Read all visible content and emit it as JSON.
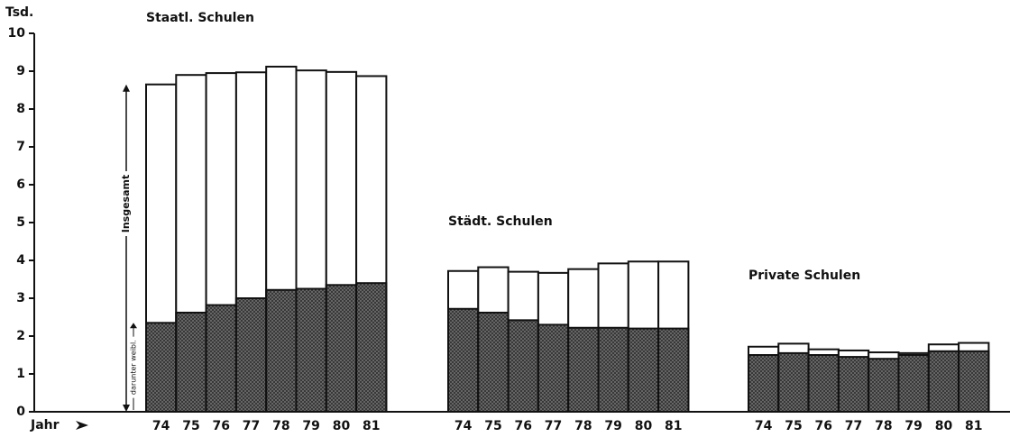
{
  "chart_data": {
    "type": "bar",
    "ylabel": "Tsd.",
    "xlabel": "Jahr",
    "ylim": [
      0,
      10
    ],
    "yticks": [
      0,
      1,
      2,
      3,
      4,
      5,
      6,
      7,
      8,
      9,
      10
    ],
    "categories": [
      "74",
      "75",
      "76",
      "77",
      "78",
      "79",
      "80",
      "81"
    ],
    "annotations": [
      "Insgesamt",
      "darunter weibl."
    ],
    "total_color": "#ffffff",
    "female_color": "#333333",
    "groups": [
      {
        "title": "Staatl. Schulen",
        "total": [
          8.65,
          8.9,
          8.95,
          8.97,
          9.12,
          9.02,
          8.98,
          8.87
        ],
        "female": [
          2.35,
          2.62,
          2.82,
          3.0,
          3.22,
          3.25,
          3.35,
          3.4
        ]
      },
      {
        "title": "Städt. Schulen",
        "total": [
          3.72,
          3.82,
          3.7,
          3.67,
          3.77,
          3.92,
          3.97,
          3.97
        ],
        "female": [
          2.72,
          2.62,
          2.42,
          2.3,
          2.22,
          2.22,
          2.2,
          2.2
        ]
      },
      {
        "title": "Private Schulen",
        "total": [
          1.72,
          1.8,
          1.65,
          1.62,
          1.57,
          1.55,
          1.78,
          1.82
        ],
        "female": [
          1.5,
          1.55,
          1.5,
          1.45,
          1.4,
          1.5,
          1.6,
          1.6
        ]
      }
    ]
  }
}
